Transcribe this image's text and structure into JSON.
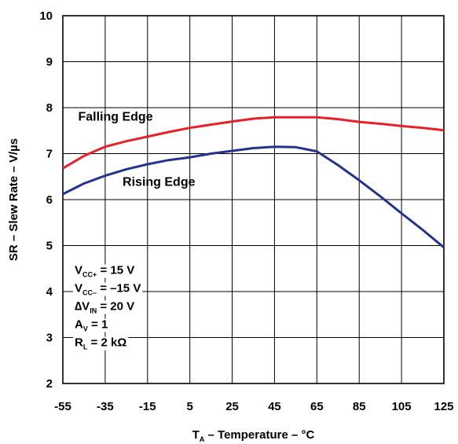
{
  "chart_data": {
    "type": "line",
    "xlabel": {
      "symbol": "T",
      "subscript": "A",
      "text": " – Temperature – °C"
    },
    "ylabel": "SR – Slew Rate – V/µs",
    "xlim": [
      -55,
      125
    ],
    "ylim": [
      2,
      10
    ],
    "x_ticks": [
      -55,
      -35,
      -15,
      5,
      25,
      45,
      65,
      85,
      105,
      125
    ],
    "x_tick_labels": [
      "-55",
      "-35",
      "-15",
      "5",
      "25",
      "45",
      "65",
      "85",
      "105",
      "125"
    ],
    "y_ticks": [
      2,
      3,
      4,
      5,
      6,
      7,
      8,
      9,
      10
    ],
    "y_tick_labels": [
      "2",
      "3",
      "4",
      "5",
      "6",
      "7",
      "8",
      "9",
      "10"
    ],
    "grid": true,
    "series": [
      {
        "name": "Falling Edge",
        "color": "#e8202a",
        "x": [
          -55,
          -45,
          -35,
          -25,
          -15,
          -5,
          5,
          15,
          25,
          35,
          45,
          55,
          65,
          75,
          85,
          95,
          105,
          115,
          125
        ],
        "y": [
          6.68,
          6.95,
          7.15,
          7.27,
          7.37,
          7.47,
          7.56,
          7.63,
          7.7,
          7.76,
          7.79,
          7.79,
          7.79,
          7.75,
          7.69,
          7.65,
          7.6,
          7.56,
          7.51
        ]
      },
      {
        "name": "Rising Edge",
        "color": "#23348f",
        "x": [
          -55,
          -45,
          -35,
          -25,
          -15,
          -5,
          5,
          15,
          25,
          35,
          45,
          55,
          65,
          75,
          85,
          95,
          105,
          115,
          125
        ],
        "y": [
          6.12,
          6.35,
          6.52,
          6.66,
          6.77,
          6.86,
          6.92,
          7.0,
          7.06,
          7.12,
          7.15,
          7.14,
          7.05,
          6.75,
          6.42,
          6.07,
          5.7,
          5.34,
          4.96
        ]
      }
    ],
    "annotations": [
      {
        "main": "V",
        "sub": "CC+",
        "rest": " = 15 V"
      },
      {
        "main": "V",
        "sub": "CC–",
        "rest": " = –15 V"
      },
      {
        "main": "∆V",
        "sub": "IN",
        "rest": " = 20 V"
      },
      {
        "main": "A",
        "sub": "V",
        "rest": " = 1"
      },
      {
        "main": "R",
        "sub": "L",
        "rest": " = 2 kΩ"
      }
    ]
  }
}
